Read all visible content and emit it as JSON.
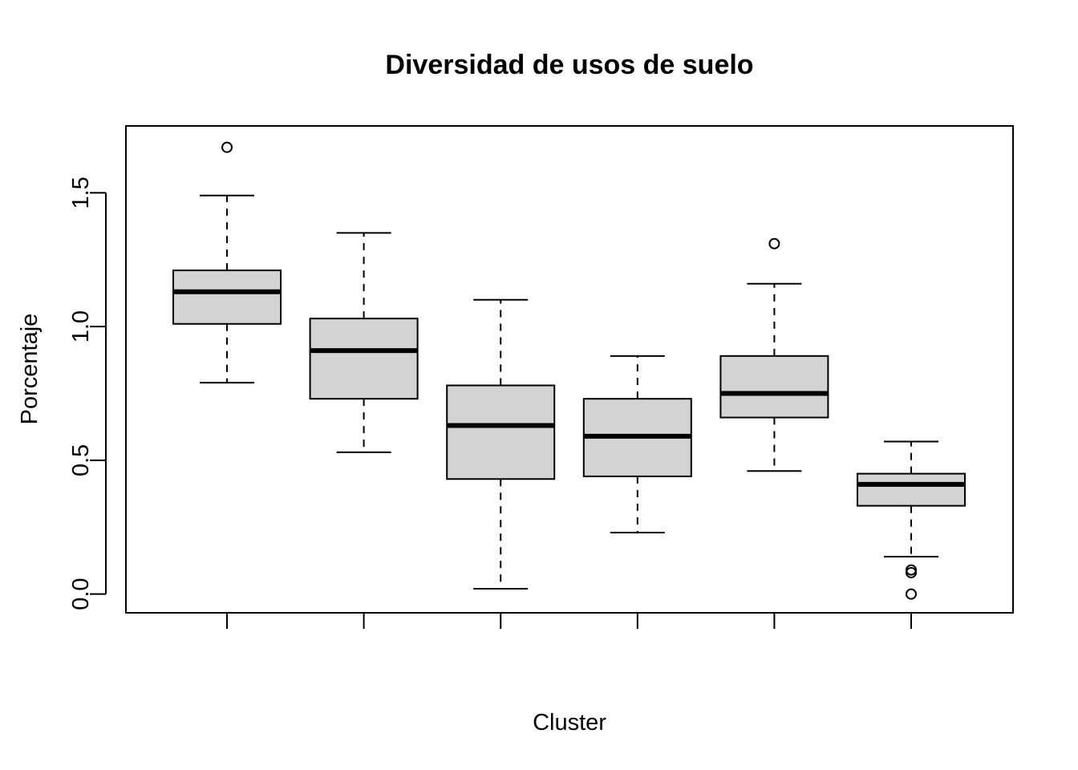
{
  "chart_data": {
    "type": "boxplot",
    "title": "Diversidad de usos de suelo",
    "xlabel": "Cluster",
    "ylabel": "Porcentaje",
    "ylim": [
      -0.07,
      1.75
    ],
    "yticks": [
      0.0,
      0.5,
      1.0,
      1.5
    ],
    "ytick_labels": [
      "0.0",
      "0.5",
      "1.0",
      "1.5"
    ],
    "categories": [
      "",
      "",
      "",
      "",
      "",
      ""
    ],
    "box_fill": "#d3d3d3",
    "grid": false,
    "boxes": [
      {
        "whisker_low": 0.79,
        "q1": 1.01,
        "median": 1.13,
        "q3": 1.21,
        "whisker_high": 1.49,
        "outliers": [
          1.67
        ]
      },
      {
        "whisker_low": 0.53,
        "q1": 0.73,
        "median": 0.91,
        "q3": 1.03,
        "whisker_high": 1.35,
        "outliers": []
      },
      {
        "whisker_low": 0.02,
        "q1": 0.43,
        "median": 0.63,
        "q3": 0.78,
        "whisker_high": 1.1,
        "outliers": []
      },
      {
        "whisker_low": 0.23,
        "q1": 0.44,
        "median": 0.59,
        "q3": 0.73,
        "whisker_high": 0.89,
        "outliers": []
      },
      {
        "whisker_low": 0.46,
        "q1": 0.66,
        "median": 0.75,
        "q3": 0.89,
        "whisker_high": 1.16,
        "outliers": [
          1.31
        ]
      },
      {
        "whisker_low": 0.14,
        "q1": 0.33,
        "median": 0.41,
        "q3": 0.45,
        "whisker_high": 0.57,
        "outliers": [
          0.09,
          0.08,
          0.0
        ]
      }
    ]
  }
}
